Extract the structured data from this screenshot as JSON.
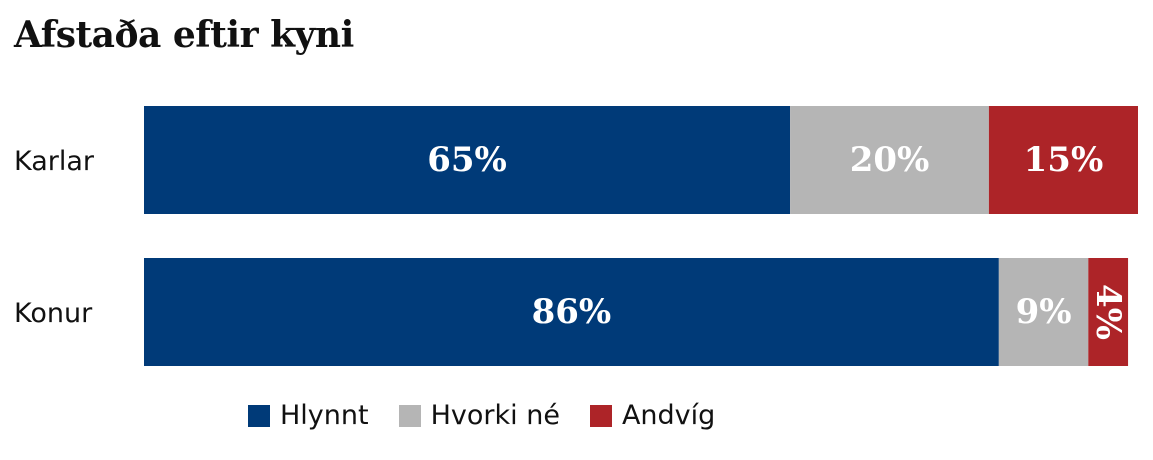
{
  "chart_data": {
    "type": "bar",
    "orientation": "horizontal",
    "stacked": true,
    "title": "Afstaða eftir kyni",
    "categories": [
      "Karlar",
      "Konur"
    ],
    "series": [
      {
        "name": "Hlynnt",
        "values": [
          65,
          86
        ],
        "labels": [
          "65%",
          "86%"
        ],
        "color": "#003a78"
      },
      {
        "name": "Hvorki né",
        "values": [
          20,
          9
        ],
        "labels": [
          "20%",
          "9%"
        ],
        "color": "#b5b5b5"
      },
      {
        "name": "Andvíg",
        "values": [
          15,
          4
        ],
        "labels": [
          "15%",
          "4%"
        ],
        "color": "#ad2428"
      }
    ],
    "xlim": [
      0,
      100
    ],
    "grid": false,
    "legend": "bottom"
  }
}
